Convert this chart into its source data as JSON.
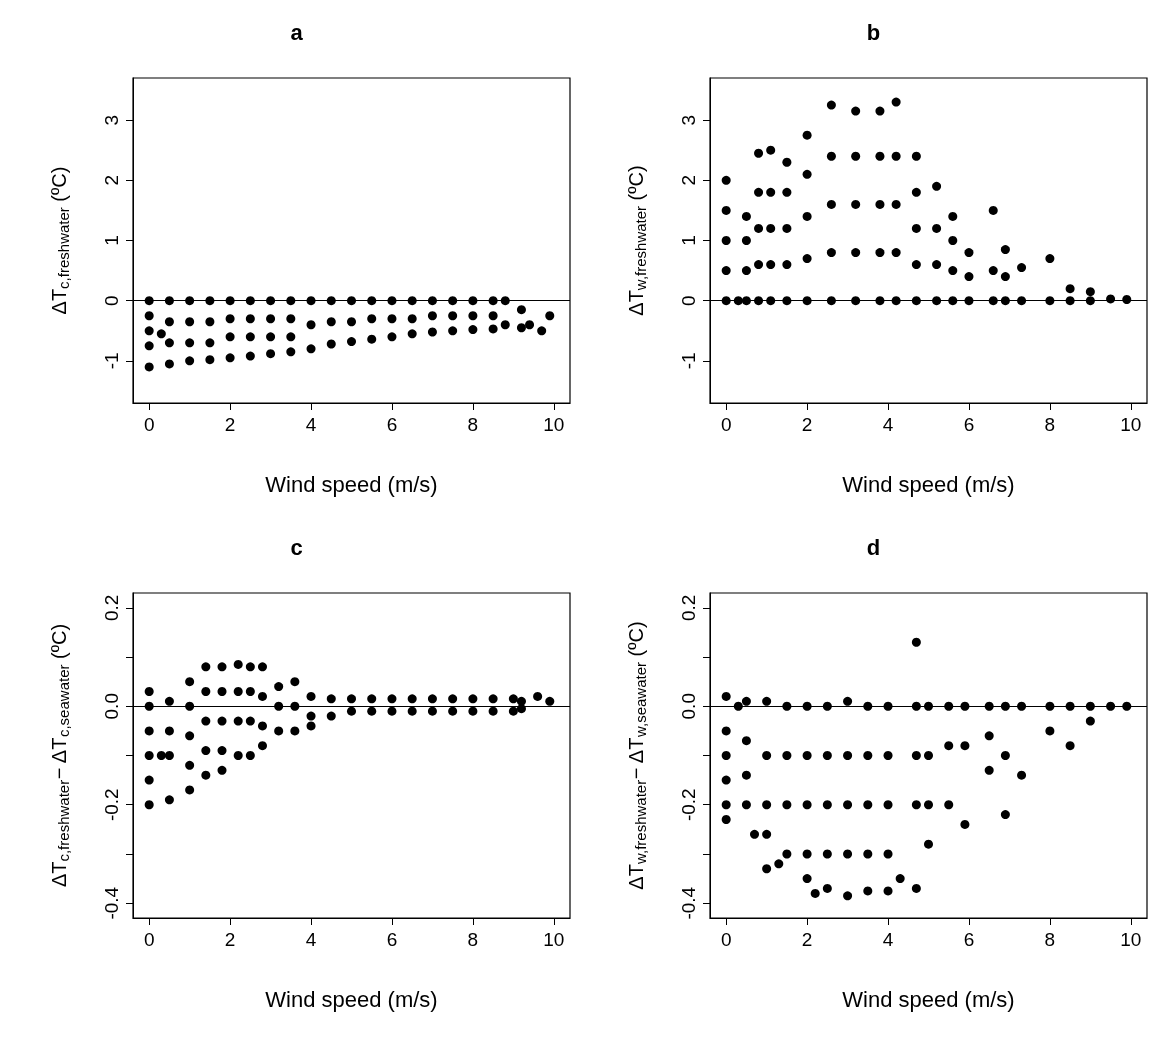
{
  "chart_data": [
    {
      "type": "scatter",
      "title": "a",
      "xlabel": "Wind speed (m/s)",
      "ylabel": "ΔT$_{c,freshwater}$ (ºC)",
      "xlim": [
        -0.4,
        10.4
      ],
      "xticks": [
        0,
        2,
        4,
        6,
        8,
        10
      ],
      "ylim": [
        -1.7,
        3.7
      ],
      "yticks": [
        -1,
        0,
        1,
        2,
        3
      ],
      "marker": "circle",
      "ref_lines": [
        {
          "axis": "y",
          "value": 0
        }
      ],
      "series": [
        {
          "color": "#000000",
          "x": [
            0,
            0,
            0,
            0,
            0,
            0.3,
            0.5,
            0.5,
            0.5,
            0.5,
            1,
            1,
            1,
            1,
            1.5,
            1.5,
            1.5,
            1.5,
            2,
            2,
            2,
            2,
            2.5,
            2.5,
            2.5,
            2.5,
            3,
            3,
            3,
            3,
            3.5,
            3.5,
            3.5,
            3.5,
            4,
            4,
            4,
            4.5,
            4.5,
            4.5,
            5,
            5,
            5,
            5.5,
            5.5,
            5.5,
            6,
            6,
            6,
            6.5,
            6.5,
            6.5,
            7,
            7,
            7,
            7.5,
            7.5,
            7.5,
            8,
            8,
            8,
            8.5,
            8.5,
            8.5,
            8.8,
            8.8,
            9.2,
            9.2,
            9.4,
            9.7,
            9.9
          ],
          "values": [
            0,
            -0.25,
            -0.5,
            -0.75,
            -1.1,
            -0.55,
            0,
            -0.35,
            -0.7,
            -1.05,
            0,
            -0.35,
            -0.7,
            -1.0,
            0,
            -0.35,
            -0.7,
            -0.98,
            0,
            -0.3,
            -0.6,
            -0.95,
            0,
            -0.3,
            -0.6,
            -0.92,
            0,
            -0.3,
            -0.6,
            -0.88,
            0,
            -0.3,
            -0.6,
            -0.85,
            0,
            -0.4,
            -0.8,
            0,
            -0.35,
            -0.72,
            0,
            -0.35,
            -0.68,
            0,
            -0.3,
            -0.64,
            0,
            -0.3,
            -0.6,
            0,
            -0.3,
            -0.55,
            0,
            -0.25,
            -0.52,
            0,
            -0.25,
            -0.5,
            0,
            -0.25,
            -0.48,
            0,
            -0.25,
            -0.47,
            0,
            -0.4,
            -0.15,
            -0.45,
            -0.4,
            -0.5,
            -0.25
          ]
        }
      ]
    },
    {
      "type": "scatter",
      "title": "b",
      "xlabel": "Wind speed (m/s)",
      "ylabel": "ΔT$_{w,freshwater}$ (ºC)",
      "xlim": [
        -0.4,
        10.4
      ],
      "xticks": [
        0,
        2,
        4,
        6,
        8,
        10
      ],
      "ylim": [
        -1.7,
        3.7
      ],
      "yticks": [
        -1,
        0,
        1,
        2,
        3
      ],
      "marker": "circle",
      "ref_lines": [
        {
          "axis": "y",
          "value": 0
        }
      ],
      "series": [
        {
          "color": "#000000",
          "x": [
            0,
            0,
            0,
            0,
            0,
            0.3,
            0.5,
            0.5,
            0.5,
            0.5,
            0.8,
            0.8,
            0.8,
            0.8,
            0.8,
            1.1,
            1.1,
            1.1,
            1.1,
            1.1,
            1.5,
            1.5,
            1.5,
            1.5,
            1.5,
            2,
            2,
            2,
            2,
            2,
            2.6,
            2.6,
            2.6,
            2.6,
            2.6,
            3.2,
            3.2,
            3.2,
            3.2,
            3.2,
            3.8,
            3.8,
            3.8,
            3.8,
            3.8,
            4.2,
            4.2,
            4.2,
            4.2,
            4.2,
            4.7,
            4.7,
            4.7,
            4.7,
            4.7,
            5.2,
            5.2,
            5.2,
            5.2,
            5.6,
            5.6,
            5.6,
            5.6,
            6,
            6,
            6,
            6.6,
            6.6,
            6.6,
            6.9,
            6.9,
            6.9,
            7.3,
            7.3,
            8,
            8,
            8.5,
            8.5,
            9,
            9,
            9.5,
            9.9
          ],
          "values": [
            0,
            0.5,
            1,
            1.5,
            2,
            0,
            0,
            0.5,
            1,
            1.4,
            0,
            0.6,
            1.2,
            1.8,
            2.45,
            0,
            0.6,
            1.2,
            1.8,
            2.5,
            0,
            0.6,
            1.2,
            1.8,
            2.3,
            0,
            0.7,
            1.4,
            2.1,
            2.75,
            0,
            0.8,
            1.6,
            2.4,
            3.25,
            0,
            0.8,
            1.6,
            2.4,
            3.15,
            0,
            0.8,
            1.6,
            2.4,
            3.15,
            0,
            0.8,
            1.6,
            2.4,
            3.3,
            0,
            0.6,
            1.2,
            1.8,
            2.4,
            0,
            0.6,
            1.2,
            1.9,
            0,
            0.5,
            1.0,
            1.4,
            0,
            0.4,
            0.8,
            0,
            0.5,
            1.5,
            0,
            0.4,
            0.85,
            0,
            0.55,
            0,
            0.7,
            0,
            0.2,
            0,
            0.15,
            0.03,
            0.02
          ]
        }
      ]
    },
    {
      "type": "scatter",
      "title": "c",
      "xlabel": "Wind speed (m/s)",
      "ylabel": "ΔT$_{c,freshwater}$− ΔT$_{c,seawater}$ (ºC)",
      "xlim": [
        -0.4,
        10.4
      ],
      "xticks": [
        0,
        2,
        4,
        6,
        8,
        10
      ],
      "ylim": [
        -0.43,
        0.23
      ],
      "yticks": [
        -0.4,
        {
          "value": -0.3,
          "label": null
        },
        -0.2,
        {
          "value": -0.1,
          "label": null
        },
        {
          "value": 0,
          "label": "0.0"
        },
        {
          "value": 0.1,
          "label": null
        },
        0.2
      ],
      "marker": "circle",
      "ref_lines": [
        {
          "axis": "y",
          "value": 0
        }
      ],
      "series": [
        {
          "color": "#000000",
          "x": [
            0,
            0,
            0,
            0,
            0,
            0,
            0.3,
            0.5,
            0.5,
            0.5,
            0.5,
            1,
            1,
            1,
            1,
            1,
            1.4,
            1.4,
            1.4,
            1.4,
            1.4,
            1.8,
            1.8,
            1.8,
            1.8,
            1.8,
            2.2,
            2.2,
            2.2,
            2.2,
            2.5,
            2.5,
            2.5,
            2.5,
            2.8,
            2.8,
            2.8,
            2.8,
            3.2,
            3.2,
            3.2,
            3.6,
            3.6,
            3.6,
            4,
            4,
            4,
            4.5,
            4.5,
            5,
            5,
            5.5,
            5.5,
            6,
            6,
            6.5,
            6.5,
            7,
            7,
            7.5,
            7.5,
            8,
            8,
            8.5,
            8.5,
            9,
            9,
            9.2,
            9.2,
            9.6,
            9.9
          ],
          "values": [
            0.03,
            0,
            -0.05,
            -0.1,
            -0.15,
            -0.2,
            -0.1,
            0.01,
            -0.05,
            -0.1,
            -0.19,
            0.05,
            0,
            -0.06,
            -0.12,
            -0.17,
            0.08,
            0.03,
            -0.03,
            -0.09,
            -0.14,
            0.08,
            0.03,
            -0.03,
            -0.09,
            -0.13,
            0.085,
            0.03,
            -0.03,
            -0.1,
            0.08,
            0.03,
            -0.03,
            -0.1,
            0.08,
            0.02,
            -0.04,
            -0.08,
            0.04,
            0,
            -0.05,
            0.05,
            0,
            -0.05,
            0.02,
            -0.02,
            -0.04,
            0.015,
            -0.02,
            0.015,
            -0.01,
            0.015,
            -0.01,
            0.015,
            -0.01,
            0.015,
            -0.01,
            0.015,
            -0.01,
            0.015,
            -0.01,
            0.015,
            -0.01,
            0.015,
            -0.01,
            0.015,
            -0.01,
            0.01,
            -0.005,
            0.02,
            0.01
          ]
        }
      ]
    },
    {
      "type": "scatter",
      "title": "d",
      "xlabel": "Wind speed (m/s)",
      "ylabel": "ΔT$_{w,freshwater}$− ΔT$_{w,seawater}$ (ºC)",
      "xlim": [
        -0.4,
        10.4
      ],
      "xticks": [
        0,
        2,
        4,
        6,
        8,
        10
      ],
      "ylim": [
        -0.43,
        0.23
      ],
      "yticks": [
        -0.4,
        {
          "value": -0.3,
          "label": null
        },
        -0.2,
        {
          "value": -0.1,
          "label": null
        },
        {
          "value": 0,
          "label": "0.0"
        },
        {
          "value": 0.1,
          "label": null
        },
        0.2
      ],
      "marker": "circle",
      "ref_lines": [
        {
          "axis": "y",
          "value": 0
        }
      ],
      "series": [
        {
          "color": "#000000",
          "x": [
            0,
            0,
            0,
            0,
            0,
            0,
            0.3,
            0.5,
            0.5,
            0.5,
            0.5,
            0.7,
            1,
            1,
            1,
            1,
            1,
            1.3,
            1.5,
            1.5,
            1.5,
            1.5,
            2,
            2,
            2,
            2,
            2,
            2.2,
            2.5,
            2.5,
            2.5,
            2.5,
            2.5,
            3,
            3,
            3,
            3,
            3,
            3.5,
            3.5,
            3.5,
            3.5,
            3.5,
            4,
            4,
            4,
            4,
            4,
            4.3,
            4.7,
            4.7,
            4.7,
            4.7,
            4.7,
            5,
            5,
            5,
            5,
            5.5,
            5.5,
            5.5,
            5.9,
            5.9,
            5.9,
            6.5,
            6.5,
            6.5,
            6.9,
            6.9,
            6.9,
            7.3,
            7.3,
            8,
            8,
            8.5,
            8.5,
            9,
            9,
            9.5,
            9.9
          ],
          "values": [
            0.02,
            -0.05,
            -0.1,
            -0.15,
            -0.2,
            -0.23,
            0,
            0.01,
            -0.07,
            -0.14,
            -0.2,
            -0.26,
            0.01,
            -0.1,
            -0.2,
            -0.26,
            -0.33,
            -0.32,
            0,
            -0.1,
            -0.2,
            -0.3,
            0,
            -0.1,
            -0.2,
            -0.3,
            -0.35,
            -0.38,
            0,
            -0.1,
            -0.2,
            -0.3,
            -0.37,
            0.01,
            -0.1,
            -0.2,
            -0.3,
            -0.385,
            0,
            -0.1,
            -0.2,
            -0.3,
            -0.375,
            0,
            -0.1,
            -0.2,
            -0.3,
            -0.375,
            -0.35,
            0.13,
            0,
            -0.1,
            -0.2,
            -0.37,
            0,
            -0.1,
            -0.2,
            -0.28,
            0,
            -0.08,
            -0.2,
            0,
            -0.08,
            -0.24,
            0,
            -0.06,
            -0.13,
            0,
            -0.1,
            -0.22,
            0,
            -0.14,
            0,
            -0.05,
            0,
            -0.08,
            0,
            -0.03,
            0,
            0
          ]
        }
      ]
    }
  ]
}
